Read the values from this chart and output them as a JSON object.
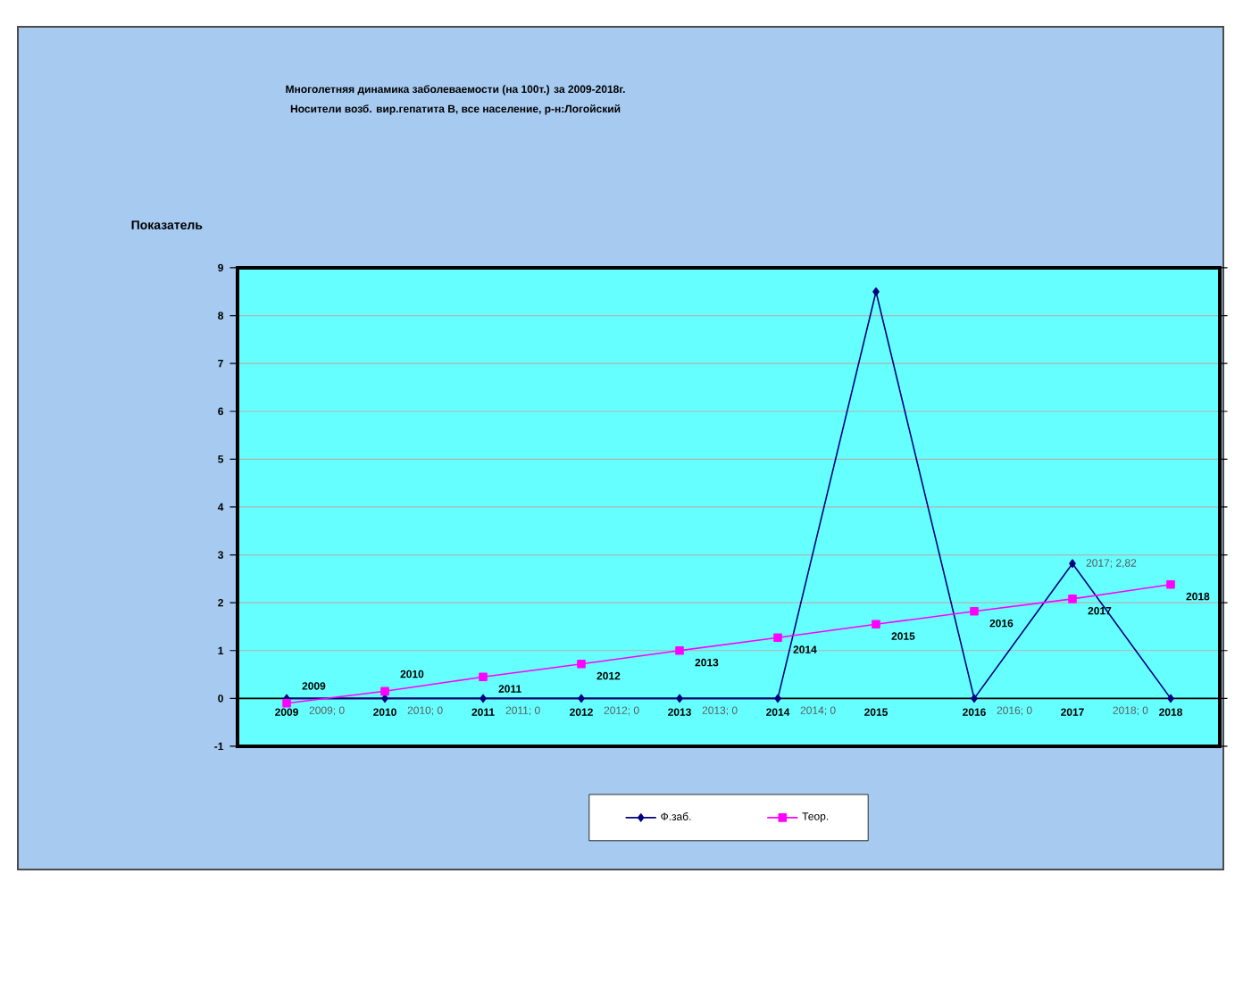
{
  "chart_data": {
    "type": "line",
    "title": "Многолетняя  динамика заболеваемости  (на 100т.) за 2009-2018г.",
    "subtitle": "Носители  возб.  вир.гепатита  В, все население,  р-н:Логойский",
    "ylabel": "Показатель",
    "categories": [
      "2009",
      "2010",
      "2011",
      "2012",
      "2013",
      "2014",
      "2015",
      "2016",
      "2017",
      "2018"
    ],
    "ylim": [
      -1,
      9
    ],
    "yticks": [
      -1,
      0,
      1,
      2,
      3,
      4,
      5,
      6,
      7,
      8,
      9
    ],
    "grid": "y",
    "legend": "bottom",
    "series": [
      {
        "name": "Ф.заб.",
        "color": "#000080",
        "marker": "diamond",
        "values": [
          0,
          0,
          0,
          0,
          0,
          0,
          8.5,
          0,
          2.82,
          0
        ],
        "value_labels": [
          "2009; 0",
          "2010; 0",
          "2011; 0",
          "2012; 0",
          "2013; 0",
          "2014; 0",
          null,
          "2016; 0",
          "2017; 2,82",
          "2018; 0"
        ]
      },
      {
        "name": "Теор.",
        "color": "#ff00ff",
        "marker": "square",
        "values": [
          -0.1,
          0.15,
          0.45,
          0.72,
          1.0,
          1.27,
          1.55,
          1.82,
          2.08,
          2.38
        ]
      }
    ],
    "annotations": [
      {
        "text": "2009",
        "x": "2009",
        "y": -0.1
      },
      {
        "text": "2010",
        "x": "2010",
        "y": 0.15
      },
      {
        "text": "2011",
        "x": "2011",
        "y": 0.45
      },
      {
        "text": "2012",
        "x": "2012",
        "y": 0.72
      },
      {
        "text": "2013",
        "x": "2013",
        "y": 1.0
      },
      {
        "text": "2014",
        "x": "2014",
        "y": 1.27
      },
      {
        "text": "2015",
        "x": "2015",
        "y": 1.55
      },
      {
        "text": "2016",
        "x": "2016",
        "y": 1.82
      },
      {
        "text": "2017",
        "x": "2017",
        "y": 2.08
      },
      {
        "text": "2018",
        "x": "2018",
        "y": 2.38
      }
    ]
  }
}
